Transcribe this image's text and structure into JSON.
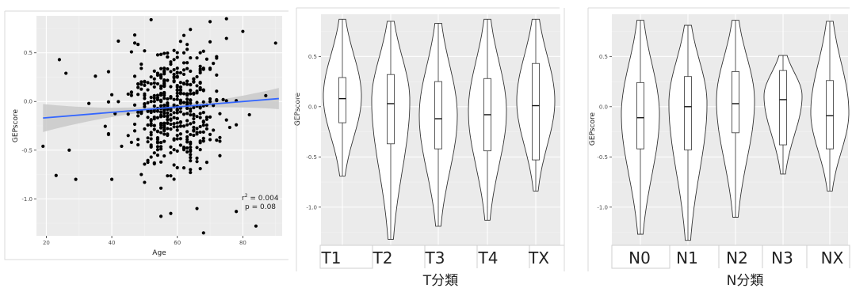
{
  "chart_data": [
    {
      "type": "scatter",
      "xlabel": "Age",
      "ylabel": "GEPscore",
      "xlim": [
        17,
        92
      ],
      "ylim": [
        -1.38,
        0.88
      ],
      "xticks": [
        20,
        40,
        60,
        80
      ],
      "yticks": [
        0.5,
        0.0,
        -0.5,
        -1.0
      ],
      "ytick_labels": [
        "0.5",
        "0.0",
        "-0.5",
        "-1.0"
      ],
      "grid": true,
      "points_shown": 480,
      "points_sample": [
        [
          19,
          -0.46
        ],
        [
          24,
          0.43
        ],
        [
          26,
          0.29
        ],
        [
          23,
          -0.76
        ],
        [
          29,
          -0.8
        ],
        [
          27,
          -0.5
        ],
        [
          33,
          -0.02
        ],
        [
          35,
          0.26
        ],
        [
          40,
          -0.8
        ],
        [
          42,
          0.62
        ],
        [
          45,
          -0.35
        ],
        [
          50,
          0.52
        ],
        [
          52,
          0.84
        ],
        [
          55,
          -1.18
        ],
        [
          58,
          -1.15
        ],
        [
          60,
          0.25
        ],
        [
          62,
          -0.47
        ],
        [
          66,
          -1.1
        ],
        [
          68,
          -1.35
        ],
        [
          70,
          0.82
        ],
        [
          75,
          0.85
        ],
        [
          78,
          -1.13
        ],
        [
          80,
          0.72
        ],
        [
          84,
          -1.28
        ],
        [
          87,
          0.06
        ],
        [
          90,
          0.6
        ]
      ],
      "trend": {
        "x": [
          19,
          91
        ],
        "y": [
          -0.17,
          0.03
        ]
      },
      "annotation": {
        "r2_label": "r",
        "r2_sup": "2",
        "r2_value": " = 0.004",
        "p": "p = 0.08"
      }
    },
    {
      "type": "violin",
      "xlabel": "",
      "ylabel": "GEPscore",
      "ylim": [
        -1.38,
        0.92
      ],
      "yticks": [
        0.5,
        0.0,
        -0.5,
        -1.0
      ],
      "ytick_labels": [
        "0.5",
        "0.0",
        "-0.5",
        "-1.0"
      ],
      "categories": [
        "T1",
        "T2",
        "T3",
        "T4",
        "TX"
      ],
      "groups": [
        {
          "min": -0.69,
          "q1": -0.16,
          "median": 0.08,
          "q3": 0.29,
          "max": 0.87
        },
        {
          "min": -1.32,
          "q1": -0.37,
          "median": 0.03,
          "q3": 0.32,
          "max": 0.85
        },
        {
          "min": -1.19,
          "q1": -0.42,
          "median": -0.12,
          "q3": 0.25,
          "max": 0.83
        },
        {
          "min": -1.13,
          "q1": -0.44,
          "median": -0.08,
          "q3": 0.28,
          "max": 0.87
        },
        {
          "min": -0.84,
          "q1": -0.53,
          "median": 0.01,
          "q3": 0.43,
          "max": 0.87
        }
      ],
      "caption": "T分類"
    },
    {
      "type": "violin",
      "xlabel": "",
      "ylabel": "GEPscore",
      "ylim": [
        -1.38,
        0.92
      ],
      "yticks": [
        0.5,
        0.0,
        -0.5,
        -1.0
      ],
      "ytick_labels": [
        "0.5",
        "0.0",
        "-0.5",
        "-1.0"
      ],
      "categories": [
        "N0",
        "N1",
        "N2",
        "N3",
        "NX"
      ],
      "groups": [
        {
          "min": -1.27,
          "q1": -0.42,
          "median": -0.11,
          "q3": 0.24,
          "max": 0.86
        },
        {
          "min": -1.33,
          "q1": -0.43,
          "median": 0.0,
          "q3": 0.3,
          "max": 0.81
        },
        {
          "min": -1.1,
          "q1": -0.26,
          "median": 0.03,
          "q3": 0.35,
          "max": 0.86
        },
        {
          "min": -0.67,
          "q1": -0.38,
          "median": 0.07,
          "q3": 0.36,
          "max": 0.51
        },
        {
          "min": -0.84,
          "q1": -0.42,
          "median": -0.09,
          "q3": 0.26,
          "max": 0.85
        }
      ],
      "caption": "N分類"
    }
  ]
}
